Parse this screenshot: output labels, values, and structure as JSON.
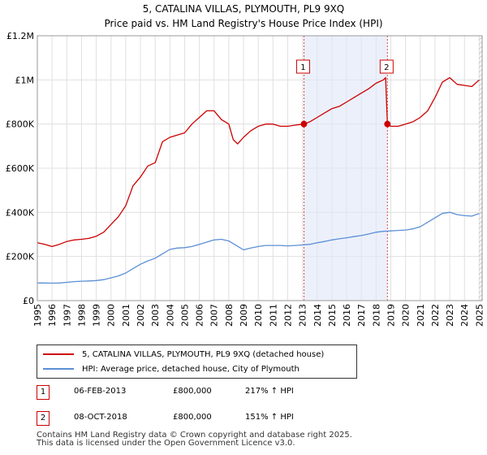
{
  "header": {
    "title": "5, CATALINA VILLAS, PLYMOUTH, PL9 9XQ",
    "subtitle": "Price paid vs. HM Land Registry's House Price Index (HPI)"
  },
  "colors": {
    "property": "#cc0000",
    "hpi": "#5b8fd6",
    "shade": "#dfe6f8"
  },
  "chart_data": {
    "type": "line",
    "xlim": [
      1995,
      2025.2
    ],
    "ylim": [
      0,
      1200000
    ],
    "y_ticks": [
      {
        "value": 0,
        "label": "£0"
      },
      {
        "value": 200000,
        "label": "£200K"
      },
      {
        "value": 400000,
        "label": "£400K"
      },
      {
        "value": 600000,
        "label": "£600K"
      },
      {
        "value": 800000,
        "label": "£800K"
      },
      {
        "value": 1000000,
        "label": "£1M"
      },
      {
        "value": 1200000,
        "label": "£1.2M"
      }
    ],
    "x_ticks": [
      "1995",
      "1996",
      "1997",
      "1998",
      "1999",
      "2000",
      "2001",
      "2002",
      "2003",
      "2004",
      "2005",
      "2006",
      "2007",
      "2008",
      "2009",
      "2010",
      "2011",
      "2012",
      "2013",
      "2014",
      "2015",
      "2016",
      "2017",
      "2018",
      "2019",
      "2020",
      "2021",
      "2022",
      "2023",
      "2024",
      "2025"
    ],
    "series": [
      {
        "name": "5, CATALINA VILLAS, PLYMOUTH, PL9 9XQ (detached house)",
        "color": "#cc0000",
        "x": [
          1995,
          1995.5,
          1996,
          1996.5,
          1997,
          1997.5,
          1998,
          1998.5,
          1999,
          1999.5,
          2000,
          2000.5,
          2001,
          2001.5,
          2002,
          2002.5,
          2003,
          2003.5,
          2004,
          2004.5,
          2005,
          2005.5,
          2006,
          2006.5,
          2007,
          2007.5,
          2008,
          2008.3,
          2008.6,
          2009,
          2009.5,
          2010,
          2010.5,
          2011,
          2011.5,
          2012,
          2012.5,
          2013.1,
          2013.5,
          2014,
          2014.5,
          2015,
          2015.5,
          2016,
          2016.5,
          2017,
          2017.5,
          2018,
          2018.5,
          2018.65,
          2018.77,
          2019,
          2019.5,
          2020,
          2020.5,
          2021,
          2021.5,
          2022,
          2022.5,
          2023,
          2023.5,
          2024,
          2024.5,
          2025
        ],
        "y": [
          262000,
          255000,
          245000,
          255000,
          268000,
          275000,
          278000,
          282000,
          292000,
          310000,
          345000,
          380000,
          430000,
          520000,
          560000,
          610000,
          625000,
          720000,
          740000,
          750000,
          760000,
          800000,
          830000,
          860000,
          860000,
          820000,
          800000,
          730000,
          710000,
          740000,
          770000,
          790000,
          800000,
          800000,
          790000,
          790000,
          795000,
          800000,
          810000,
          830000,
          850000,
          870000,
          880000,
          900000,
          920000,
          940000,
          960000,
          985000,
          1000000,
          1010000,
          800000,
          790000,
          790000,
          800000,
          810000,
          830000,
          860000,
          920000,
          990000,
          1010000,
          980000,
          975000,
          970000,
          1000000
        ]
      },
      {
        "name": "HPI: Average price, detached house, City of Plymouth",
        "color": "#5b8fd6",
        "x": [
          1995,
          1995.5,
          1996,
          1996.5,
          1997,
          1997.5,
          1998,
          1998.5,
          1999,
          1999.5,
          2000,
          2000.5,
          2001,
          2001.5,
          2002,
          2002.5,
          2003,
          2003.5,
          2004,
          2004.5,
          2005,
          2005.5,
          2006,
          2006.5,
          2007,
          2007.5,
          2008,
          2008.5,
          2009,
          2009.5,
          2010,
          2010.5,
          2011,
          2011.5,
          2012,
          2012.5,
          2013,
          2013.5,
          2014,
          2014.5,
          2015,
          2015.5,
          2016,
          2016.5,
          2017,
          2017.5,
          2018,
          2018.5,
          2019,
          2019.5,
          2020,
          2020.5,
          2021,
          2021.5,
          2022,
          2022.5,
          2023,
          2023.5,
          2024,
          2024.5,
          2025
        ],
        "y": [
          80000,
          80000,
          79000,
          80000,
          83000,
          86000,
          88000,
          89000,
          91000,
          95000,
          103000,
          112000,
          125000,
          145000,
          165000,
          180000,
          192000,
          212000,
          232000,
          238000,
          240000,
          245000,
          255000,
          265000,
          275000,
          278000,
          270000,
          250000,
          230000,
          238000,
          245000,
          250000,
          250000,
          250000,
          248000,
          250000,
          252000,
          255000,
          262000,
          268000,
          275000,
          280000,
          285000,
          290000,
          295000,
          302000,
          310000,
          314000,
          316000,
          318000,
          320000,
          325000,
          335000,
          355000,
          375000,
          395000,
          400000,
          390000,
          385000,
          383000,
          395000
        ]
      }
    ],
    "sales": [
      {
        "marker": "1",
        "x": 2013.1,
        "y": 800000
      },
      {
        "marker": "2",
        "x": 2018.77,
        "y": 800000
      }
    ],
    "shaded_range": [
      2013.1,
      2018.77
    ],
    "hatched_from": 2025
  },
  "legend": {
    "property_label": "5, CATALINA VILLAS, PLYMOUTH, PL9 9XQ (detached house)",
    "hpi_label": "HPI: Average price, detached house, City of Plymouth"
  },
  "sales_table": [
    {
      "marker": "1",
      "date": "06-FEB-2013",
      "price": "£800,000",
      "hpi": "217% ↑ HPI"
    },
    {
      "marker": "2",
      "date": "08-OCT-2018",
      "price": "£800,000",
      "hpi": "151% ↑ HPI"
    }
  ],
  "footer": {
    "line1": "Contains HM Land Registry data © Crown copyright and database right 2025.",
    "line2": "This data is licensed under the Open Government Licence v3.0."
  }
}
